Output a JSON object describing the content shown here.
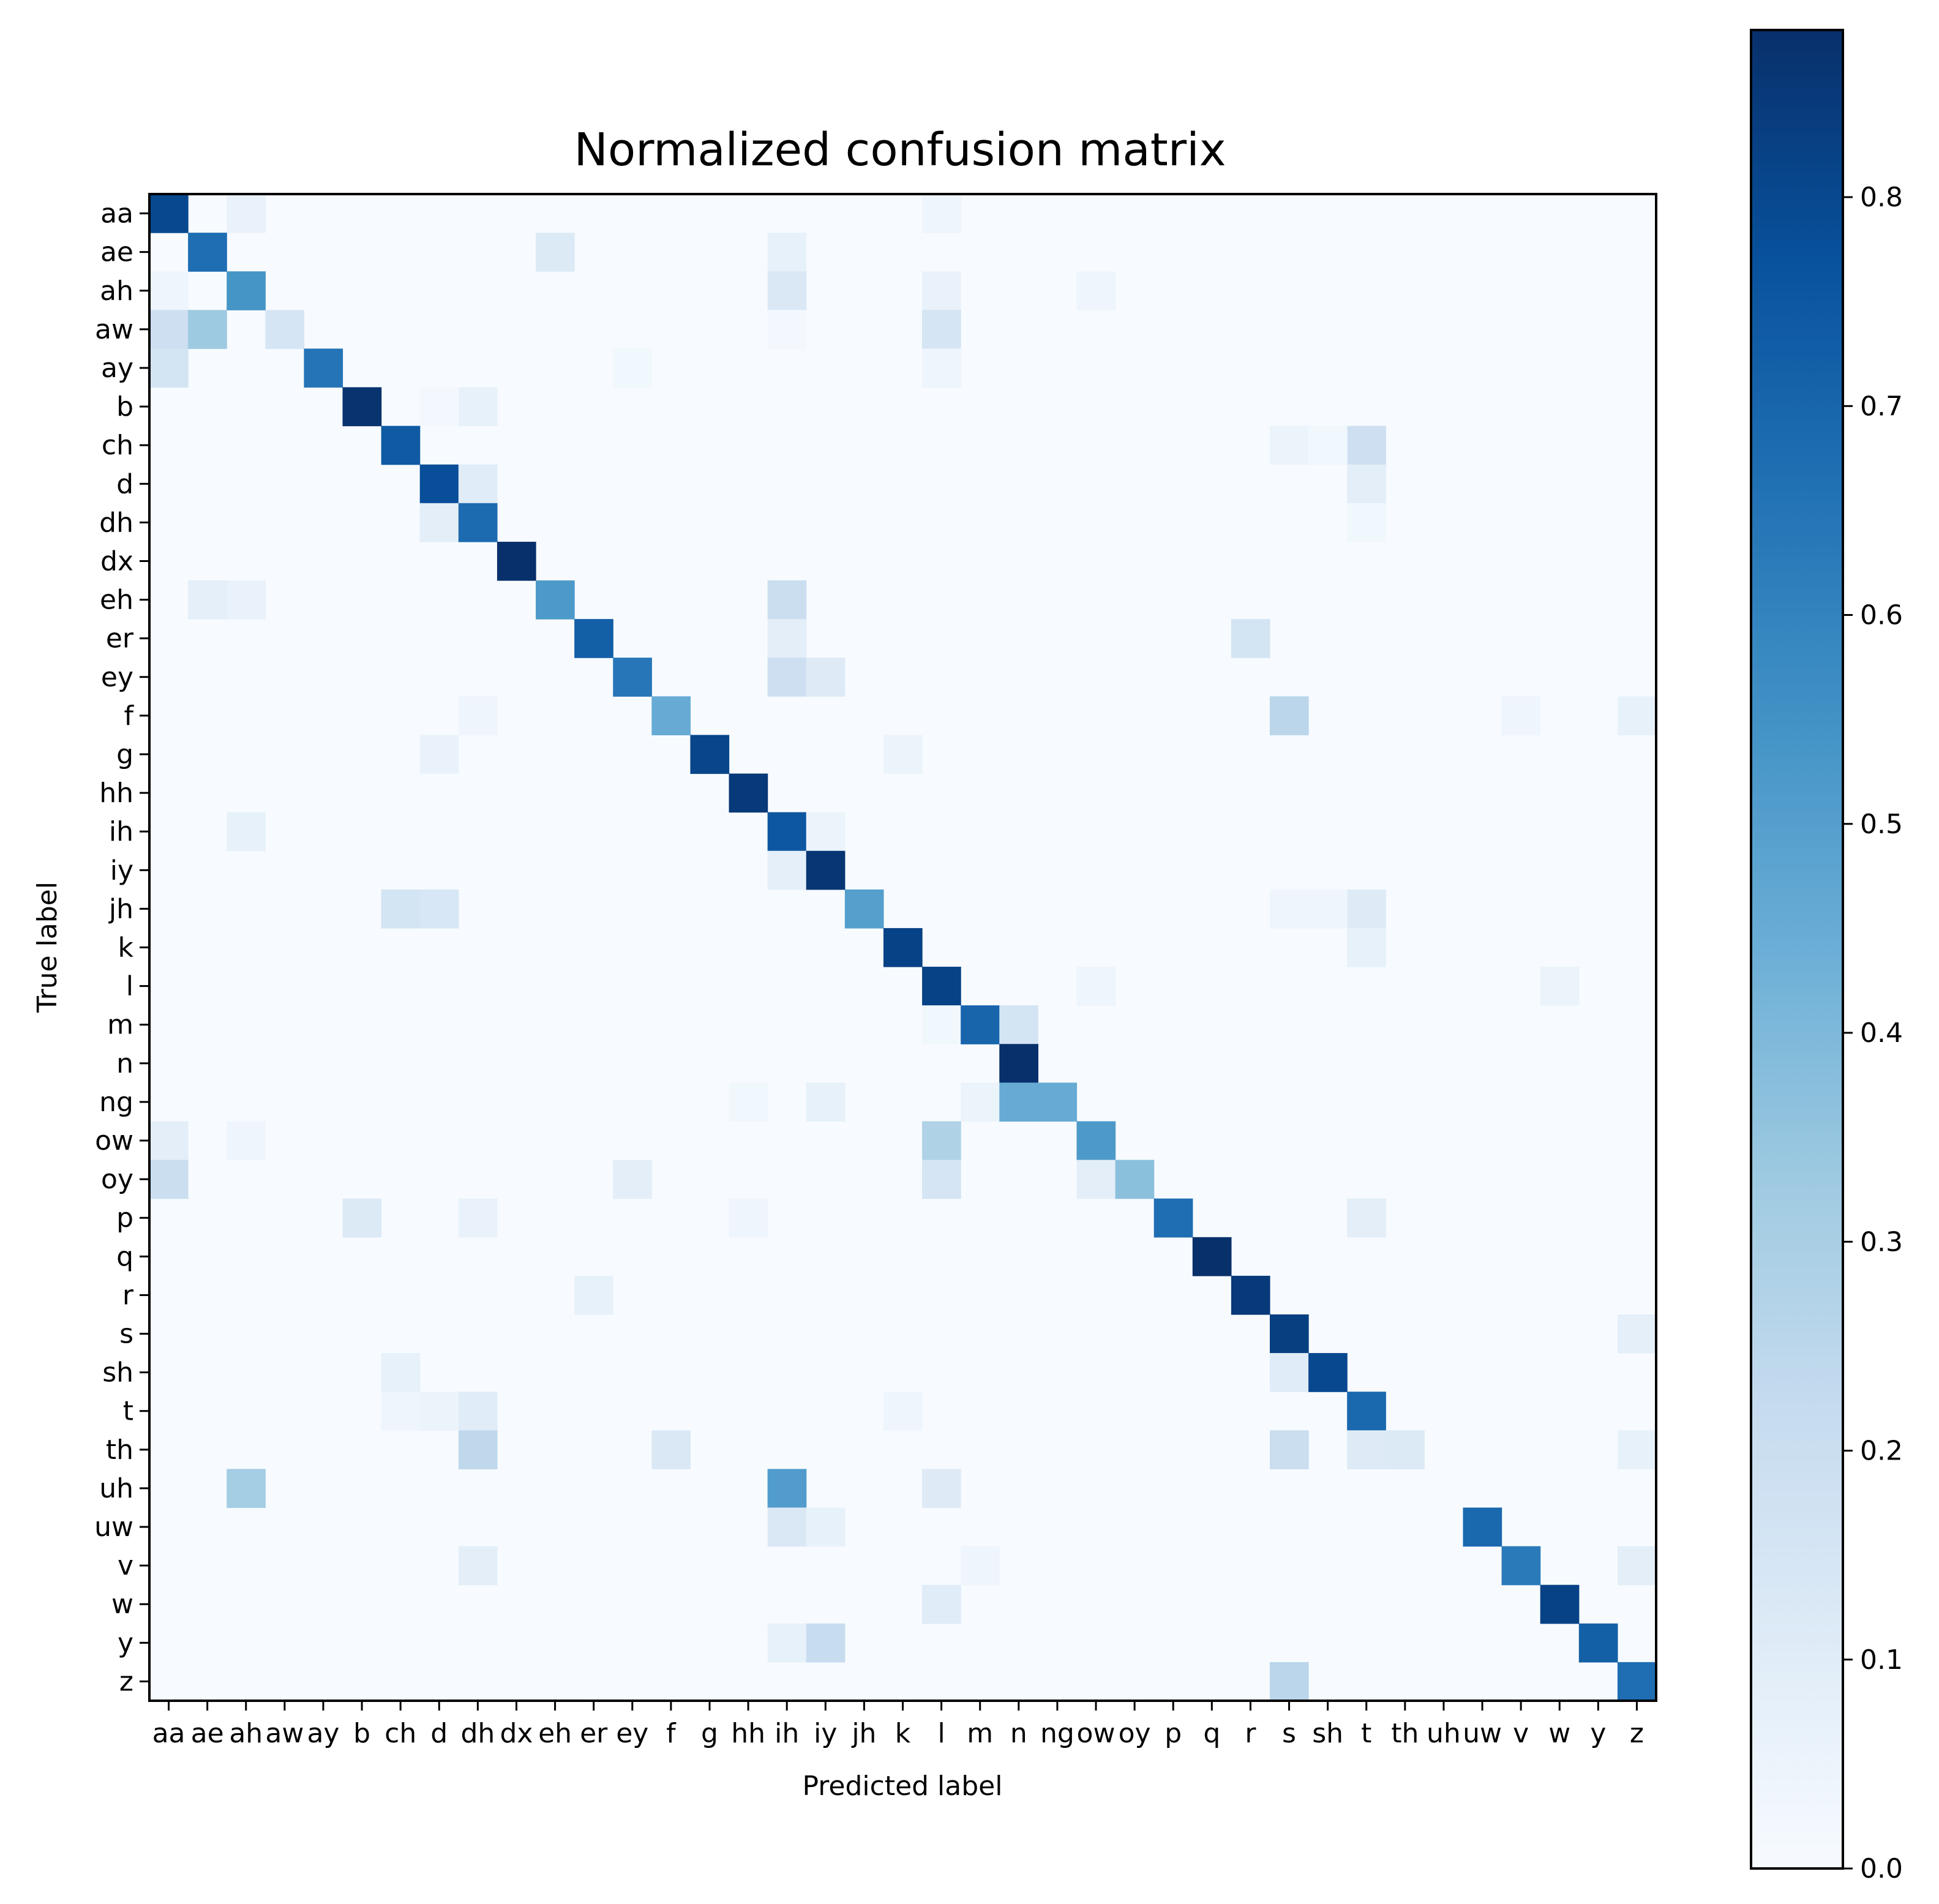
{
  "chart_data": {
    "type": "heatmap",
    "title": "Normalized confusion matrix",
    "xlabel": "Predicted label",
    "ylabel": "True label",
    "labels": [
      "aa",
      "ae",
      "ah",
      "aw",
      "ay",
      "b",
      "ch",
      "d",
      "dh",
      "dx",
      "eh",
      "er",
      "ey",
      "f",
      "g",
      "hh",
      "ih",
      "iy",
      "jh",
      "k",
      "l",
      "m",
      "n",
      "ng",
      "ow",
      "oy",
      "p",
      "q",
      "r",
      "s",
      "sh",
      "t",
      "th",
      "uh",
      "uw",
      "v",
      "w",
      "y",
      "z"
    ],
    "colormap": "Blues",
    "vmin": 0.0,
    "vmax": 0.88,
    "colorbar_ticks": [
      "0.0",
      "0.1",
      "0.2",
      "0.3",
      "0.4",
      "0.5",
      "0.6",
      "0.7",
      "0.8"
    ],
    "colors": {
      "background": "#ffffff",
      "axis": "#000000",
      "low": "#f7fbff",
      "high": "#08306b"
    },
    "cells": [
      [
        0,
        0,
        0.8
      ],
      [
        0,
        2,
        0.06
      ],
      [
        0,
        20,
        0.04
      ],
      [
        1,
        1,
        0.67
      ],
      [
        1,
        10,
        0.12
      ],
      [
        1,
        16,
        0.07
      ],
      [
        2,
        0,
        0.04
      ],
      [
        2,
        2,
        0.54
      ],
      [
        2,
        16,
        0.13
      ],
      [
        2,
        20,
        0.06
      ],
      [
        2,
        24,
        0.04
      ],
      [
        3,
        0,
        0.19
      ],
      [
        3,
        1,
        0.33
      ],
      [
        3,
        3,
        0.15
      ],
      [
        3,
        20,
        0.15
      ],
      [
        3,
        16,
        0.02
      ],
      [
        4,
        0,
        0.16
      ],
      [
        4,
        4,
        0.65
      ],
      [
        4,
        12,
        0.03
      ],
      [
        4,
        20,
        0.04
      ],
      [
        5,
        5,
        0.87
      ],
      [
        5,
        8,
        0.07
      ],
      [
        5,
        7,
        0.02
      ],
      [
        6,
        6,
        0.74
      ],
      [
        6,
        29,
        0.05
      ],
      [
        6,
        31,
        0.19
      ],
      [
        6,
        30,
        0.03
      ],
      [
        7,
        7,
        0.78
      ],
      [
        7,
        8,
        0.1
      ],
      [
        7,
        31,
        0.09
      ],
      [
        8,
        7,
        0.09
      ],
      [
        8,
        8,
        0.68
      ],
      [
        8,
        31,
        0.03
      ],
      [
        9,
        9,
        0.88
      ],
      [
        10,
        1,
        0.08
      ],
      [
        10,
        2,
        0.06
      ],
      [
        10,
        10,
        0.52
      ],
      [
        10,
        16,
        0.2
      ],
      [
        11,
        11,
        0.72
      ],
      [
        11,
        16,
        0.09
      ],
      [
        11,
        28,
        0.16
      ],
      [
        12,
        12,
        0.64
      ],
      [
        12,
        16,
        0.19
      ],
      [
        12,
        17,
        0.11
      ],
      [
        13,
        8,
        0.04
      ],
      [
        13,
        13,
        0.45
      ],
      [
        13,
        29,
        0.25
      ],
      [
        13,
        35,
        0.04
      ],
      [
        13,
        38,
        0.07
      ],
      [
        14,
        7,
        0.06
      ],
      [
        14,
        14,
        0.81
      ],
      [
        14,
        19,
        0.05
      ],
      [
        15,
        15,
        0.85
      ],
      [
        16,
        2,
        0.07
      ],
      [
        16,
        16,
        0.75
      ],
      [
        16,
        17,
        0.05
      ],
      [
        17,
        16,
        0.08
      ],
      [
        17,
        17,
        0.86
      ],
      [
        18,
        6,
        0.16
      ],
      [
        18,
        7,
        0.14
      ],
      [
        18,
        18,
        0.5
      ],
      [
        18,
        31,
        0.11
      ],
      [
        18,
        29,
        0.04
      ],
      [
        18,
        30,
        0.04
      ],
      [
        19,
        19,
        0.82
      ],
      [
        19,
        31,
        0.07
      ],
      [
        20,
        20,
        0.82
      ],
      [
        20,
        24,
        0.04
      ],
      [
        20,
        36,
        0.05
      ],
      [
        21,
        20,
        0.03
      ],
      [
        21,
        21,
        0.7
      ],
      [
        21,
        22,
        0.16
      ],
      [
        22,
        22,
        0.88
      ],
      [
        23,
        17,
        0.07
      ],
      [
        23,
        21,
        0.05
      ],
      [
        23,
        22,
        0.45
      ],
      [
        23,
        23,
        0.45
      ],
      [
        23,
        15,
        0.03
      ],
      [
        24,
        0,
        0.09
      ],
      [
        24,
        2,
        0.04
      ],
      [
        24,
        20,
        0.28
      ],
      [
        24,
        24,
        0.52
      ],
      [
        25,
        0,
        0.2
      ],
      [
        25,
        12,
        0.09
      ],
      [
        25,
        20,
        0.15
      ],
      [
        25,
        24,
        0.09
      ],
      [
        25,
        25,
        0.37
      ],
      [
        26,
        5,
        0.12
      ],
      [
        26,
        8,
        0.06
      ],
      [
        26,
        15,
        0.04
      ],
      [
        26,
        26,
        0.67
      ],
      [
        26,
        31,
        0.09
      ],
      [
        27,
        27,
        0.88
      ],
      [
        28,
        11,
        0.07
      ],
      [
        28,
        28,
        0.85
      ],
      [
        29,
        29,
        0.83
      ],
      [
        29,
        38,
        0.08
      ],
      [
        30,
        6,
        0.07
      ],
      [
        30,
        29,
        0.1
      ],
      [
        30,
        30,
        0.8
      ],
      [
        31,
        6,
        0.04
      ],
      [
        31,
        7,
        0.05
      ],
      [
        31,
        8,
        0.1
      ],
      [
        31,
        19,
        0.04
      ],
      [
        31,
        31,
        0.69
      ],
      [
        32,
        8,
        0.24
      ],
      [
        32,
        13,
        0.13
      ],
      [
        32,
        29,
        0.2
      ],
      [
        32,
        31,
        0.11
      ],
      [
        32,
        32,
        0.12
      ],
      [
        32,
        38,
        0.07
      ],
      [
        33,
        2,
        0.31
      ],
      [
        33,
        16,
        0.51
      ],
      [
        33,
        20,
        0.11
      ],
      [
        34,
        16,
        0.13
      ],
      [
        34,
        17,
        0.07
      ],
      [
        34,
        34,
        0.69
      ],
      [
        35,
        8,
        0.09
      ],
      [
        35,
        35,
        0.63
      ],
      [
        35,
        38,
        0.09
      ],
      [
        35,
        21,
        0.04
      ],
      [
        36,
        20,
        0.1
      ],
      [
        36,
        36,
        0.82
      ],
      [
        37,
        16,
        0.07
      ],
      [
        37,
        17,
        0.21
      ],
      [
        37,
        37,
        0.72
      ],
      [
        38,
        29,
        0.25
      ],
      [
        38,
        38,
        0.67
      ]
    ]
  }
}
